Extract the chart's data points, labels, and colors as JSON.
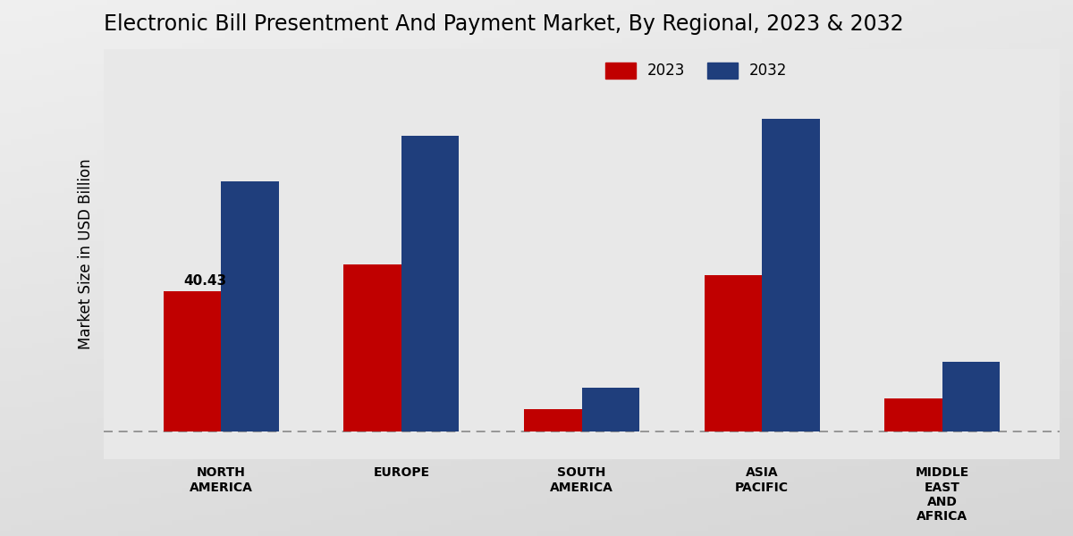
{
  "title": "Electronic Bill Presentment And Payment Market, By Regional, 2023 & 2032",
  "ylabel": "Market Size in USD Billion",
  "categories": [
    "NORTH\nAMERICA",
    "EUROPE",
    "SOUTH\nAMERICA",
    "ASIA\nPACIFIC",
    "MIDDLE\nEAST\nAND\nAFRICA"
  ],
  "values_2023": [
    40.43,
    48.0,
    6.5,
    45.0,
    9.5
  ],
  "values_2032": [
    72.0,
    85.0,
    12.5,
    90.0,
    20.0
  ],
  "color_2023": "#c00000",
  "color_2032": "#1f3e7c",
  "annotation_label": "40.43",
  "background_color_top": "#f0f0f0",
  "background_color_bottom": "#d0d0d0",
  "dashed_line_y": 0,
  "bar_width": 0.32,
  "title_fontsize": 17,
  "axis_label_fontsize": 12,
  "tick_fontsize": 10,
  "legend_fontsize": 12,
  "annotation_fontsize": 11,
  "ylim_max": 110,
  "dashed_line_color": "#888888"
}
